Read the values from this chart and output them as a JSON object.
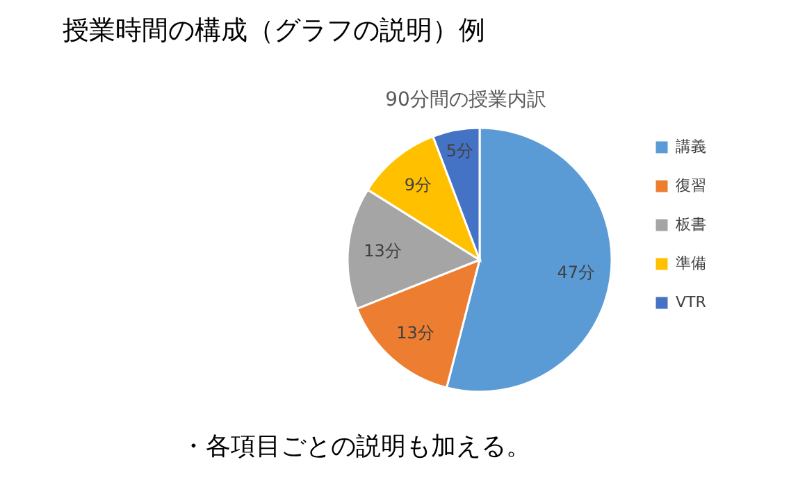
{
  "chart_data": {
    "type": "pie",
    "title": "90分間の授業内訳",
    "categories": [
      "講義",
      "復習",
      "板書",
      "準備",
      "VTR"
    ],
    "values": [
      47,
      13,
      13,
      9,
      5
    ],
    "colors": [
      "#5b9bd5",
      "#ed7d31",
      "#a5a5a5",
      "#ffc000",
      "#4472c4"
    ],
    "value_labels": [
      "47分",
      "13分",
      "13分",
      "9分",
      "5分"
    ],
    "legend": "right",
    "annotations": [
      "授業時間の構成（グラフの説明）例",
      "・各項目ごとの説明も加える。"
    ]
  }
}
